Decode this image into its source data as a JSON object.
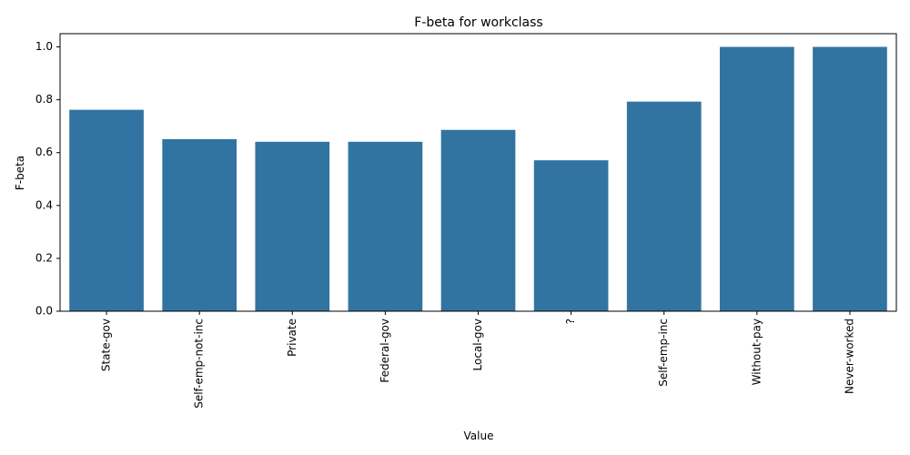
{
  "chart_data": {
    "type": "bar",
    "title": "F-beta for workclass",
    "xlabel": "Value",
    "ylabel": "F-beta",
    "categories": [
      "State-gov",
      "Self-emp-not-inc",
      "Private",
      "Federal-gov",
      "Local-gov",
      "?",
      "Self-emp-inc",
      "Without-pay",
      "Never-worked"
    ],
    "values": [
      0.762,
      0.651,
      0.641,
      0.641,
      0.686,
      0.571,
      0.793,
      1.0,
      1.0
    ],
    "ylim": [
      0,
      1.05
    ],
    "yticks": [
      "0.0",
      "0.2",
      "0.4",
      "0.6",
      "0.8",
      "1.0"
    ],
    "grid": false,
    "bar_color": "#3274a1"
  }
}
